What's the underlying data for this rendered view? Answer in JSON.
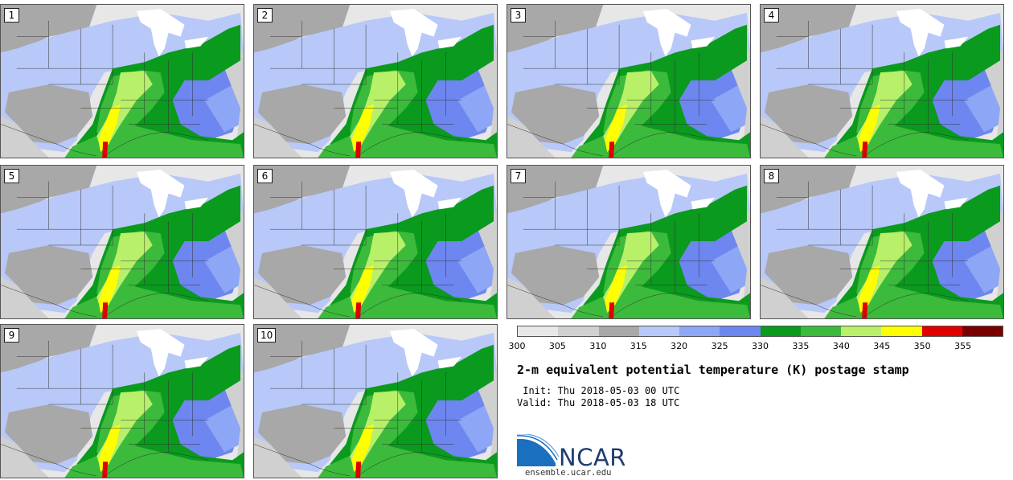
{
  "panels": [
    {
      "label": "1"
    },
    {
      "label": "2"
    },
    {
      "label": "3"
    },
    {
      "label": "4"
    },
    {
      "label": "5"
    },
    {
      "label": "6"
    },
    {
      "label": "7"
    },
    {
      "label": "8"
    },
    {
      "label": "9"
    },
    {
      "label": "10"
    }
  ],
  "colorbar": {
    "colors": [
      "#e8e8e8",
      "#d0d0d0",
      "#a8a8a8",
      "#b8c8f8",
      "#8ea6f6",
      "#6e86f0",
      "#0a9a1e",
      "#3cba3c",
      "#b8f06a",
      "#ffff00",
      "#e00000",
      "#7a0000"
    ],
    "ticks": [
      "300",
      "305",
      "310",
      "315",
      "320",
      "325",
      "330",
      "335",
      "340",
      "345",
      "350",
      "355"
    ]
  },
  "title": "2-m equivalent potential temperature (K) postage stamp",
  "init": " Init: Thu 2018-05-03 00 UTC",
  "valid": "Valid: Thu 2018-05-03 18 UTC",
  "logo": {
    "text": "NCAR",
    "url": "ensemble.ucar.edu"
  }
}
